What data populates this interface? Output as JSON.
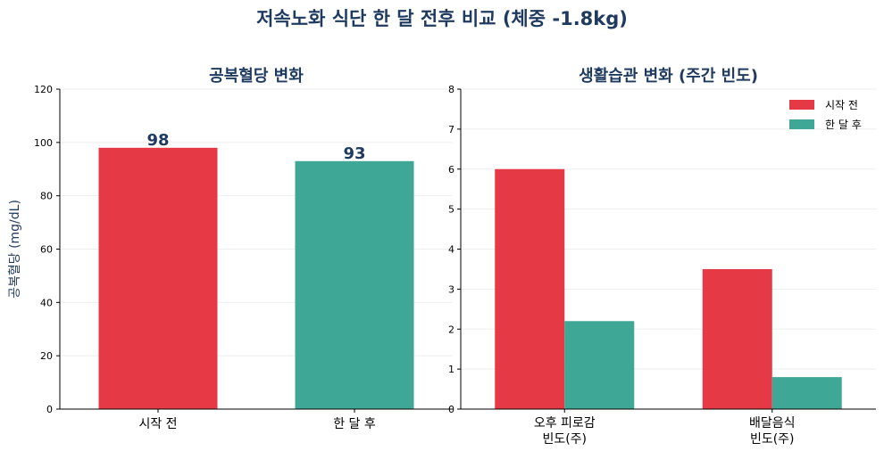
{
  "figure": {
    "title": "저속노화 식단 한 달 전후 비교 (체중 -1.8kg)"
  },
  "colors": {
    "title": "#1f3a5f",
    "before": "#e63946",
    "after": "#3fa796",
    "axis": "#000000",
    "grid": "#eeeeee"
  },
  "chart_data": [
    {
      "type": "bar",
      "title": "공복혈당 변화",
      "ylabel": "공복혈당 (mg/dL)",
      "xlabel": "",
      "categories": [
        "시작 전",
        "한 달 후"
      ],
      "values": [
        98,
        93
      ],
      "data_labels": [
        "98",
        "93"
      ],
      "ylim": [
        0,
        120
      ],
      "yticks": [
        "0",
        "20",
        "40",
        "60",
        "80",
        "100",
        "120"
      ],
      "grid": true
    },
    {
      "type": "bar",
      "title": "생활습관 변화 (주간 빈도)",
      "xlabel": "",
      "ylabel": "",
      "categories": [
        "오후 피로감\n빈도(주)",
        "배달음식\n빈도(주)"
      ],
      "series": [
        {
          "name": "시작 전",
          "values": [
            6,
            3.5
          ]
        },
        {
          "name": "한 달 후",
          "values": [
            2.2,
            0.8
          ]
        }
      ],
      "ylim": [
        0,
        8
      ],
      "yticks": [
        "0",
        "1",
        "2",
        "3",
        "4",
        "5",
        "6",
        "7",
        "8"
      ],
      "legend": "top-right",
      "grid": true
    }
  ]
}
